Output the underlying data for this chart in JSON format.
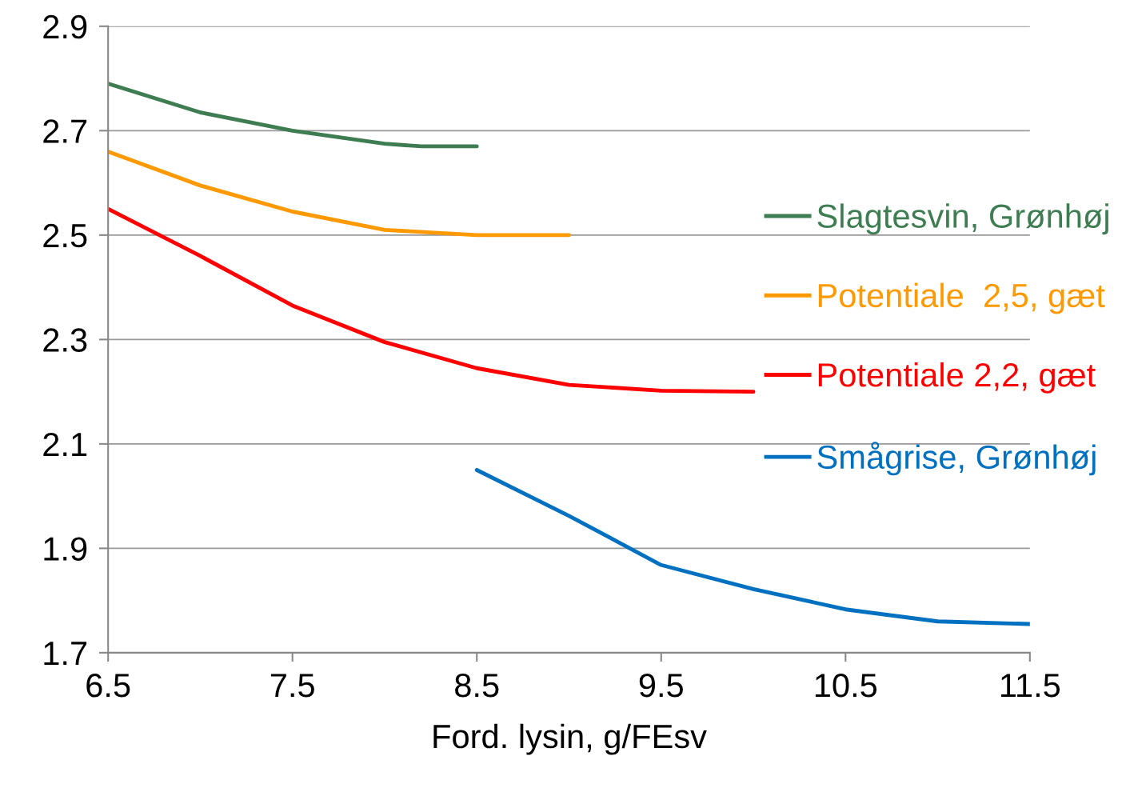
{
  "chart_data": {
    "type": "line",
    "xlabel": "Ford. lysin, g/FEsv",
    "xlim": [
      6.5,
      11.5
    ],
    "xticks": [
      6.5,
      7.5,
      8.5,
      9.5,
      10.5,
      11.5
    ],
    "ylim": [
      1.7,
      2.9
    ],
    "yticks": [
      1.7,
      1.9,
      2.1,
      2.3,
      2.5,
      2.7,
      2.9
    ],
    "grid": "y",
    "legend": "right",
    "marker": "none",
    "line_style": "solid",
    "series": [
      {
        "name": "Slagtesvin, Grønhøj",
        "color": "#3e7d52",
        "x": [
          6.5,
          7.0,
          7.5,
          8.0,
          8.2,
          8.5
        ],
        "values": [
          2.79,
          2.735,
          2.7,
          2.675,
          2.67,
          2.67
        ]
      },
      {
        "name": "Potentiale  2,5, gæt",
        "color": "#ff9900",
        "x": [
          6.5,
          7.0,
          7.5,
          8.0,
          8.5,
          9.0
        ],
        "values": [
          2.66,
          2.595,
          2.545,
          2.51,
          2.5,
          2.5
        ]
      },
      {
        "name": "Potentiale 2,2, gæt",
        "color": "#ff0000",
        "x": [
          6.5,
          7.0,
          7.5,
          8.0,
          8.5,
          9.0,
          9.5,
          10.0
        ],
        "values": [
          2.55,
          2.46,
          2.365,
          2.295,
          2.245,
          2.213,
          2.202,
          2.2
        ]
      },
      {
        "name": "Smågrise, Grønhøj",
        "color": "#0070c0",
        "x": [
          8.5,
          9.0,
          9.5,
          10.0,
          10.5,
          11.0,
          11.5
        ],
        "values": [
          2.05,
          1.962,
          1.868,
          1.822,
          1.783,
          1.76,
          1.755
        ]
      }
    ]
  }
}
